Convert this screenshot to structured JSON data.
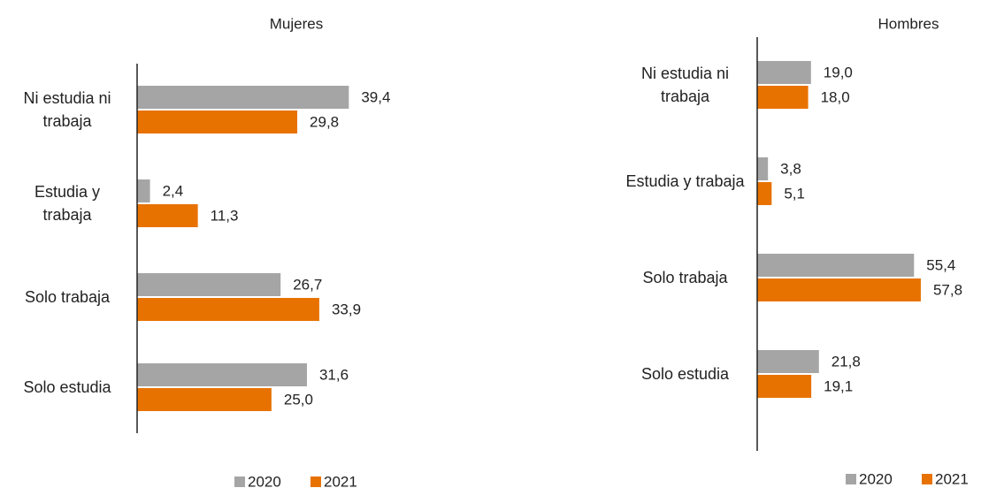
{
  "chart_data": [
    {
      "type": "bar",
      "orientation": "horizontal",
      "title": "Mujeres",
      "categories": [
        "Ni estudia ni trabaja",
        "Estudia y trabaja",
        "Solo trabaja",
        "Solo estudia"
      ],
      "series": [
        {
          "name": "2020",
          "color": "#a5a5a5",
          "values": [
            39.4,
            2.4,
            26.7,
            31.6
          ],
          "value_labels": [
            "39,4",
            "2,4",
            "26,7",
            "31,6"
          ]
        },
        {
          "name": "2021",
          "color": "#e87200",
          "values": [
            29.8,
            11.3,
            33.9,
            25.0
          ],
          "value_labels": [
            "29,8",
            "11,3",
            "33,9",
            "25,0"
          ]
        }
      ],
      "xlim": [
        0,
        40
      ],
      "legend": "bottom"
    },
    {
      "type": "bar",
      "orientation": "horizontal",
      "title": "Hombres",
      "categories": [
        "Ni estudia ni trabaja",
        "Estudia y trabaja",
        "Solo trabaja",
        "Solo estudia"
      ],
      "series": [
        {
          "name": "2020",
          "color": "#a5a5a5",
          "values": [
            19.0,
            3.8,
            55.4,
            21.8
          ],
          "value_labels": [
            "19,0",
            "3,8",
            "55,4",
            "21,8"
          ]
        },
        {
          "name": "2021",
          "color": "#e87200",
          "values": [
            18.0,
            5.1,
            57.8,
            19.1
          ],
          "value_labels": [
            "18,0",
            "5,1",
            "57,8",
            "19,1"
          ]
        }
      ],
      "xlim": [
        0,
        60
      ],
      "legend": "bottom"
    }
  ]
}
